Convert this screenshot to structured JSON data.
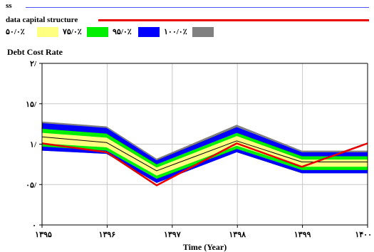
{
  "legend": {
    "line_series": [
      {
        "name": "ss",
        "color": "#5050ff"
      },
      {
        "name": "data capital structure",
        "color": "#e80000"
      }
    ],
    "bands": [
      {
        "label": "۵۰/۰٪",
        "color": "#ffff80"
      },
      {
        "label": "۷۵/۰٪",
        "color": "#00ee00"
      },
      {
        "label": "۹۵/۰٪",
        "color": "#0000ff"
      },
      {
        "label": "۱۰۰/۰٪",
        "color": "#808080"
      }
    ]
  },
  "chart_data": {
    "type": "line",
    "title": "Debt Cost Rate",
    "xlabel": "Time (Year)",
    "ylabel": "",
    "x": [
      1395,
      1396,
      1397,
      1398,
      1399,
      1400
    ],
    "xlim": [
      1395,
      1400
    ],
    "ylim": [
      0,
      0.2
    ],
    "x_tick_values": [
      1395,
      1396,
      1397,
      1398,
      1399,
      1400
    ],
    "x_tick_labels": [
      "۱۳۹۵",
      "۱۳۹۶",
      "۱۳۹۷",
      "۱۳۹۸",
      "۱۳۹۹",
      "۱۴۰۰"
    ],
    "y_tick_values": [
      0,
      0.05,
      0.1,
      0.15,
      0.2
    ],
    "y_tick_labels": [
      "۰",
      "۰۵/",
      "۱/",
      "۱۵/",
      "۲/"
    ],
    "grid": true,
    "band_x": [
      1395,
      1395.99,
      1396.76,
      1397.99,
      1398.99,
      1400
    ],
    "envelopes": [
      {
        "level": "100/0%",
        "color": "#808080",
        "lower": [
          0.092,
          0.088,
          0.052,
          0.09,
          0.064,
          0.064
        ],
        "upper": [
          0.128,
          0.122,
          0.082,
          0.124,
          0.092,
          0.092
        ]
      },
      {
        "level": "95/0%",
        "color": "#0000ff",
        "lower": [
          0.092,
          0.088,
          0.052,
          0.09,
          0.064,
          0.064
        ],
        "upper": [
          0.126,
          0.12,
          0.08,
          0.121,
          0.09,
          0.09
        ]
      },
      {
        "level": "75/0%",
        "color": "#00ee00",
        "lower": [
          0.097,
          0.092,
          0.057,
          0.094,
          0.068,
          0.068
        ],
        "upper": [
          0.119,
          0.113,
          0.075,
          0.114,
          0.085,
          0.085
        ]
      },
      {
        "level": "50/0%",
        "color": "#ffff80",
        "lower": [
          0.101,
          0.096,
          0.061,
          0.098,
          0.072,
          0.072
        ],
        "upper": [
          0.114,
          0.108,
          0.071,
          0.11,
          0.081,
          0.081
        ]
      }
    ],
    "series": [
      {
        "name": "ss",
        "color": "#000000",
        "x": [
          1395,
          1395.99,
          1396.76,
          1397.99,
          1398.99,
          1400
        ],
        "values": [
          0.109,
          0.102,
          0.067,
          0.104,
          0.078,
          0.078
        ]
      },
      {
        "name": "data capital structure",
        "color": "#e80000",
        "x": [
          1395,
          1395.99,
          1396.76,
          1397.99,
          1398.99,
          1400
        ],
        "values": [
          0.101,
          0.09,
          0.049,
          0.101,
          0.072,
          0.101
        ]
      }
    ]
  }
}
